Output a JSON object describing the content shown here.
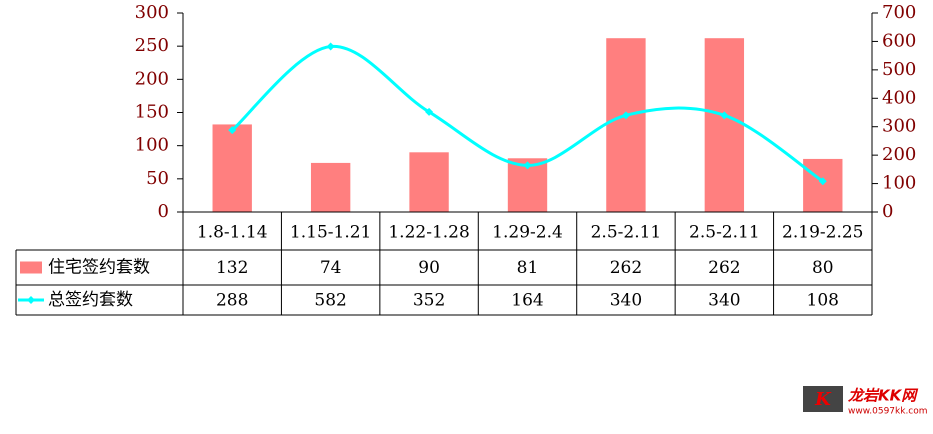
{
  "chart_data": {
    "type": "bar_line_table",
    "categories": [
      "1.8-1.14",
      "1.15-1.21",
      "1.22-1.28",
      "1.29-2.4",
      "2.5-2.11",
      "2.5-2.11",
      "2.19-2.25"
    ],
    "series": [
      {
        "name": "住宅签约套数",
        "color": "#ff7f7f",
        "type": "bar",
        "values": [
          132,
          74,
          90,
          81,
          262,
          262,
          80
        ]
      },
      {
        "name": "总签约套数",
        "color": "#00ffff",
        "type": "line",
        "axis": "y2",
        "values": [
          288,
          582,
          352,
          164,
          340,
          340,
          108
        ]
      }
    ],
    "ylim": [
      0,
      300
    ],
    "yticks": [
      0,
      50,
      100,
      150,
      200,
      250,
      300
    ],
    "y2lim": [
      0,
      700
    ],
    "y2ticks": [
      0,
      100,
      200,
      300,
      400,
      500,
      600,
      700
    ]
  },
  "watermark": {
    "title": "龙岩KK网",
    "url": "www.0597kk.com"
  }
}
